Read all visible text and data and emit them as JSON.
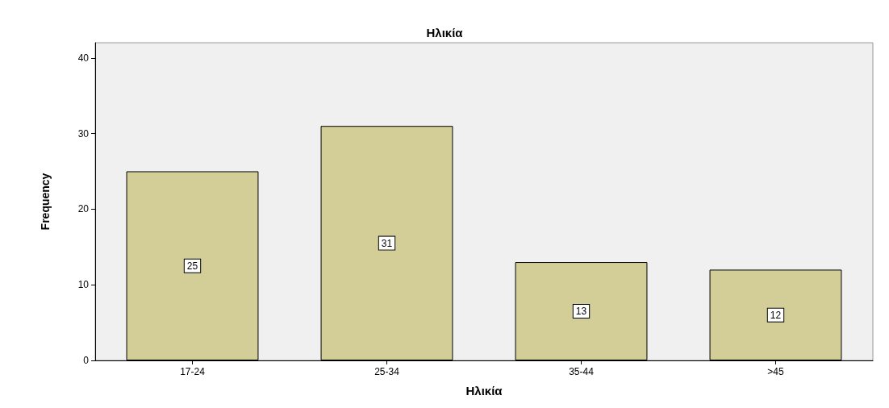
{
  "chart_data": {
    "type": "bar",
    "title": "Ηλικία",
    "xlabel": "Ηλικία",
    "ylabel": "Frequency",
    "categories": [
      "17-24",
      "25-34",
      "35-44",
      ">45"
    ],
    "values": [
      25,
      31,
      13,
      12
    ],
    "color": "#d3ce98",
    "ylim": [
      0,
      42
    ],
    "yticks": [
      0,
      10,
      20,
      30,
      40
    ],
    "grid": false,
    "data_labels": true
  }
}
